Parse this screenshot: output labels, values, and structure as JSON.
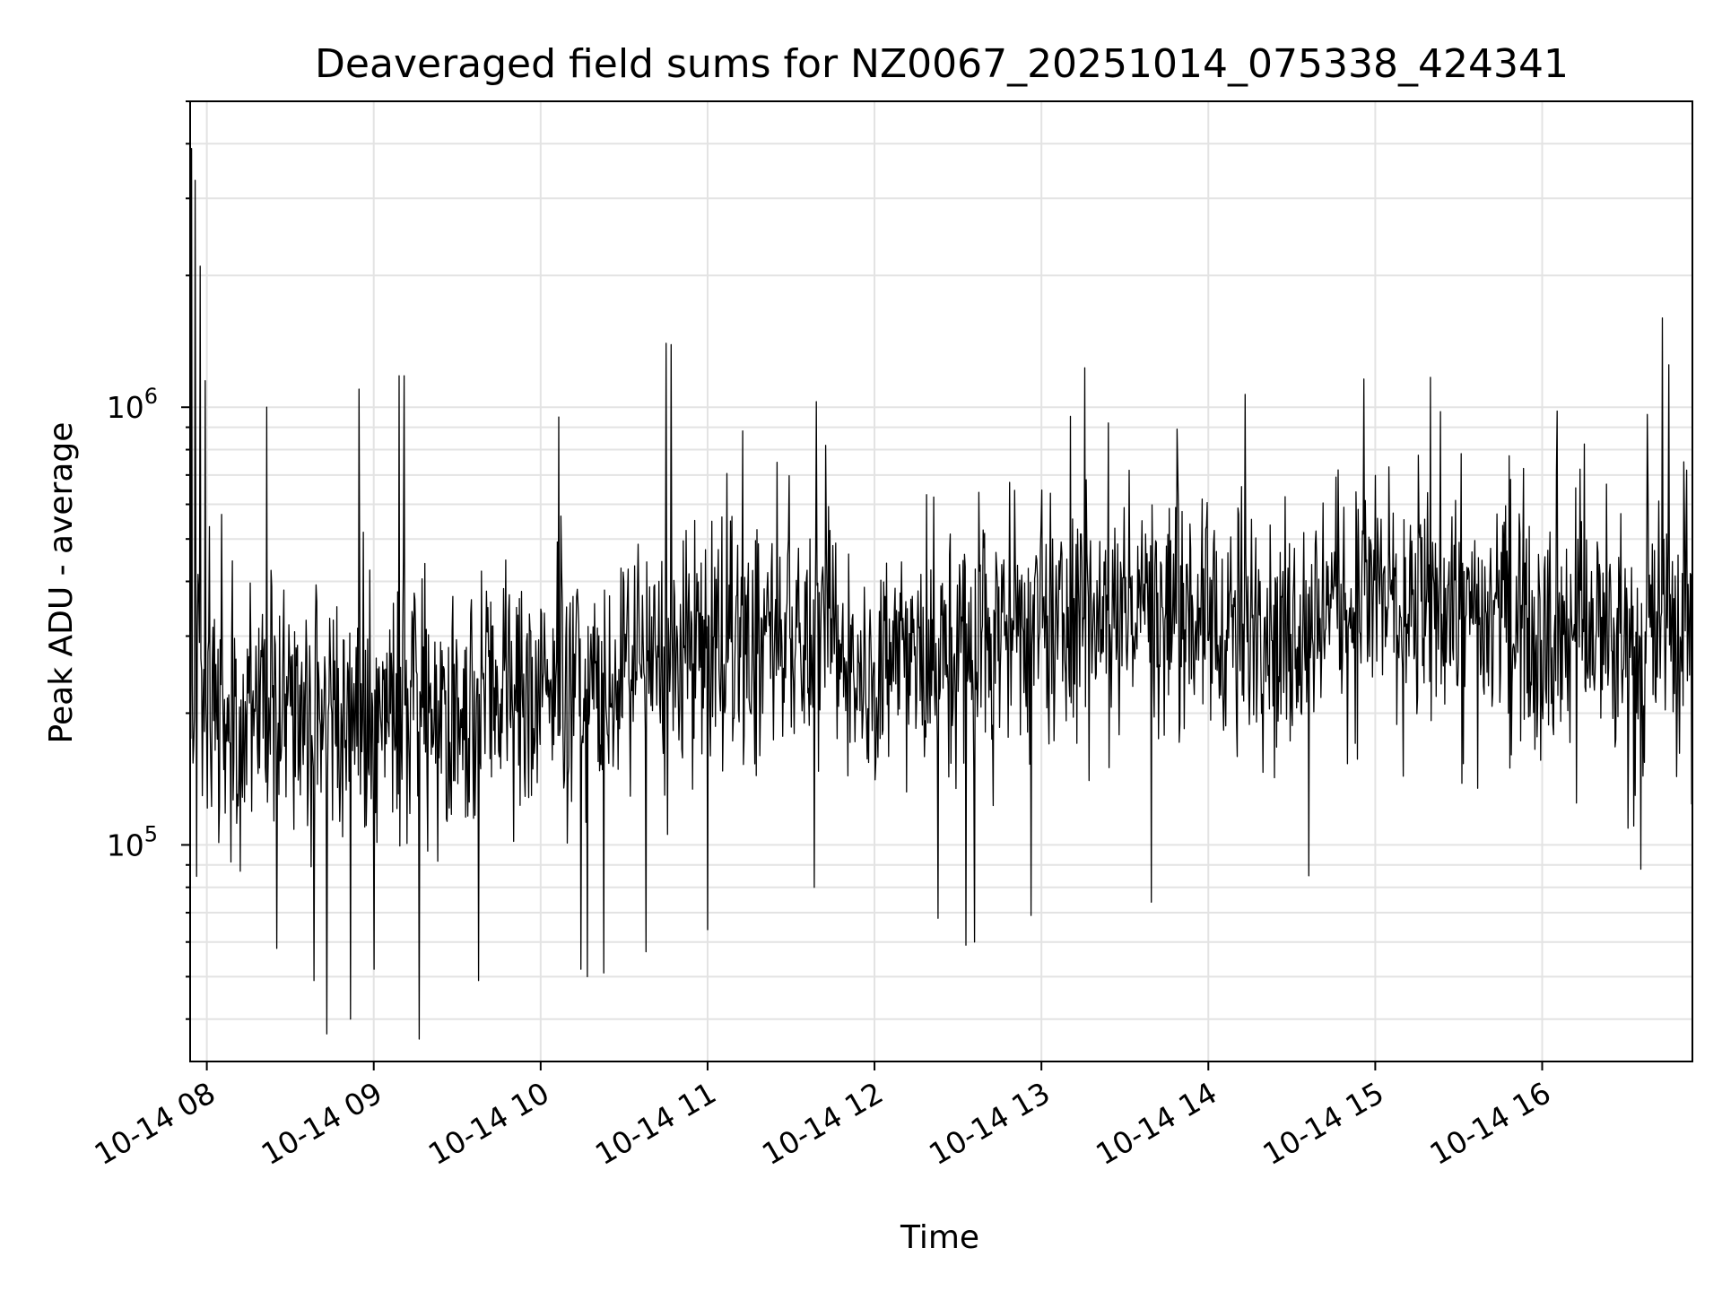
{
  "chart_data": {
    "type": "line",
    "title": "Deaveraged field sums for NZ0067_20251014_075338_424341",
    "xlabel": "Time",
    "ylabel": "Peak ADU - average",
    "yscale": "log",
    "ylim": [
      32000,
      5000000
    ],
    "xlim_hours": [
      7.9,
      16.9
    ],
    "grid": true,
    "color": "#000000",
    "x_ticks": [
      {
        "hour": 8,
        "label": "10-14 08"
      },
      {
        "hour": 9,
        "label": "10-14 09"
      },
      {
        "hour": 10,
        "label": "10-14 10"
      },
      {
        "hour": 11,
        "label": "10-14 11"
      },
      {
        "hour": 12,
        "label": "10-14 12"
      },
      {
        "hour": 13,
        "label": "10-14 13"
      },
      {
        "hour": 14,
        "label": "10-14 14"
      },
      {
        "hour": 15,
        "label": "10-14 15"
      },
      {
        "hour": 16,
        "label": "10-14 16"
      }
    ],
    "y_ticks": [
      {
        "value": 100000,
        "base": "10",
        "exp": "5"
      },
      {
        "value": 1000000,
        "base": "10",
        "exp": "6"
      }
    ],
    "series_note": "dense noisy time series, approx. one sample every 15 s",
    "trend": [
      {
        "hour": 7.9,
        "value": 230000
      },
      {
        "hour": 8.5,
        "value": 200000
      },
      {
        "hour": 9.0,
        "value": 200000
      },
      {
        "hour": 9.5,
        "value": 210000
      },
      {
        "hour": 10.0,
        "value": 220000
      },
      {
        "hour": 10.5,
        "value": 240000
      },
      {
        "hour": 11.0,
        "value": 280000
      },
      {
        "hour": 11.5,
        "value": 300000
      },
      {
        "hour": 12.0,
        "value": 260000
      },
      {
        "hour": 12.5,
        "value": 280000
      },
      {
        "hour": 13.0,
        "value": 330000
      },
      {
        "hour": 13.5,
        "value": 360000
      },
      {
        "hour": 14.0,
        "value": 330000
      },
      {
        "hour": 14.5,
        "value": 320000
      },
      {
        "hour": 15.0,
        "value": 380000
      },
      {
        "hour": 15.5,
        "value": 330000
      },
      {
        "hour": 16.0,
        "value": 340000
      },
      {
        "hour": 16.5,
        "value": 280000
      },
      {
        "hour": 16.9,
        "value": 350000
      }
    ],
    "peaks": [
      {
        "hour": 7.91,
        "value": 3900000
      },
      {
        "hour": 7.93,
        "value": 3300000
      },
      {
        "hour": 7.96,
        "value": 2100000
      },
      {
        "hour": 7.99,
        "value": 1150000
      },
      {
        "hour": 8.36,
        "value": 1000000
      },
      {
        "hour": 8.91,
        "value": 1100000
      },
      {
        "hour": 9.15,
        "value": 1180000
      },
      {
        "hour": 9.18,
        "value": 1180000
      },
      {
        "hour": 10.11,
        "value": 950000
      },
      {
        "hour": 10.75,
        "value": 1400000
      },
      {
        "hour": 10.78,
        "value": 1390000
      },
      {
        "hour": 11.65,
        "value": 1030000
      },
      {
        "hour": 13.26,
        "value": 1230000
      },
      {
        "hour": 14.22,
        "value": 1070000
      },
      {
        "hour": 14.93,
        "value": 1160000
      },
      {
        "hour": 15.33,
        "value": 1170000
      },
      {
        "hour": 16.09,
        "value": 980000
      },
      {
        "hour": 16.72,
        "value": 1600000
      },
      {
        "hour": 16.76,
        "value": 1250000
      },
      {
        "hour": 16.85,
        "value": 750000
      }
    ],
    "troughs": [
      {
        "hour": 8.42,
        "value": 58000
      },
      {
        "hour": 8.64,
        "value": 49000
      },
      {
        "hour": 8.72,
        "value": 37000
      },
      {
        "hour": 8.86,
        "value": 40000
      },
      {
        "hour": 9.0,
        "value": 52000
      },
      {
        "hour": 9.27,
        "value": 36000
      },
      {
        "hour": 9.63,
        "value": 49000
      },
      {
        "hour": 10.24,
        "value": 52000
      },
      {
        "hour": 10.28,
        "value": 50000
      },
      {
        "hour": 10.38,
        "value": 51000
      },
      {
        "hour": 10.63,
        "value": 57000
      },
      {
        "hour": 11.0,
        "value": 64000
      },
      {
        "hour": 11.64,
        "value": 80000
      },
      {
        "hour": 12.38,
        "value": 68000
      },
      {
        "hour": 12.55,
        "value": 59000
      },
      {
        "hour": 12.6,
        "value": 60000
      },
      {
        "hour": 12.94,
        "value": 69000
      },
      {
        "hour": 13.66,
        "value": 74000
      },
      {
        "hour": 14.6,
        "value": 85000
      },
      {
        "hour": 16.59,
        "value": 88000
      }
    ]
  }
}
